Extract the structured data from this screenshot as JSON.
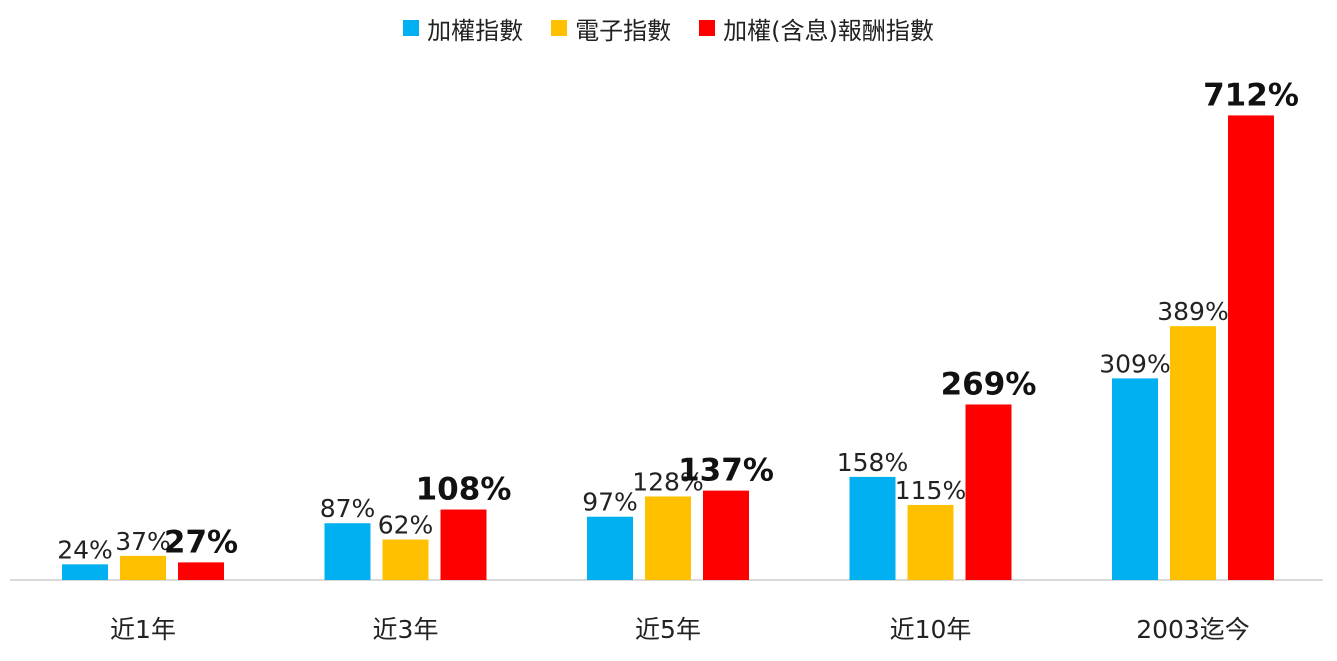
{
  "chart_data": {
    "type": "bar",
    "categories": [
      "近1年",
      "近3年",
      "近5年",
      "近10年",
      "2003迄今"
    ],
    "series": [
      {
        "name": "加權指數",
        "values": [
          24,
          87,
          97,
          158,
          309
        ],
        "labels": [
          "24%",
          "87%",
          "97%",
          "158%",
          "309%"
        ],
        "color": "#00b0f0"
      },
      {
        "name": "電子指數",
        "values": [
          37,
          62,
          128,
          115,
          389
        ],
        "labels": [
          "37%",
          "62%",
          "128%",
          "115%",
          "389%"
        ],
        "color": "#ffc000"
      },
      {
        "name": "加權(含息)報酬指數",
        "values": [
          27,
          108,
          137,
          269,
          712
        ],
        "labels": [
          "27%",
          "108%",
          "137%",
          "269%",
          "712%"
        ],
        "color": "#ff0000",
        "bold_labels": true
      }
    ],
    "ylim": [
      0,
      780
    ],
    "grid": false,
    "legend_position": "top-center",
    "axis_color": "#d9d9d9"
  }
}
